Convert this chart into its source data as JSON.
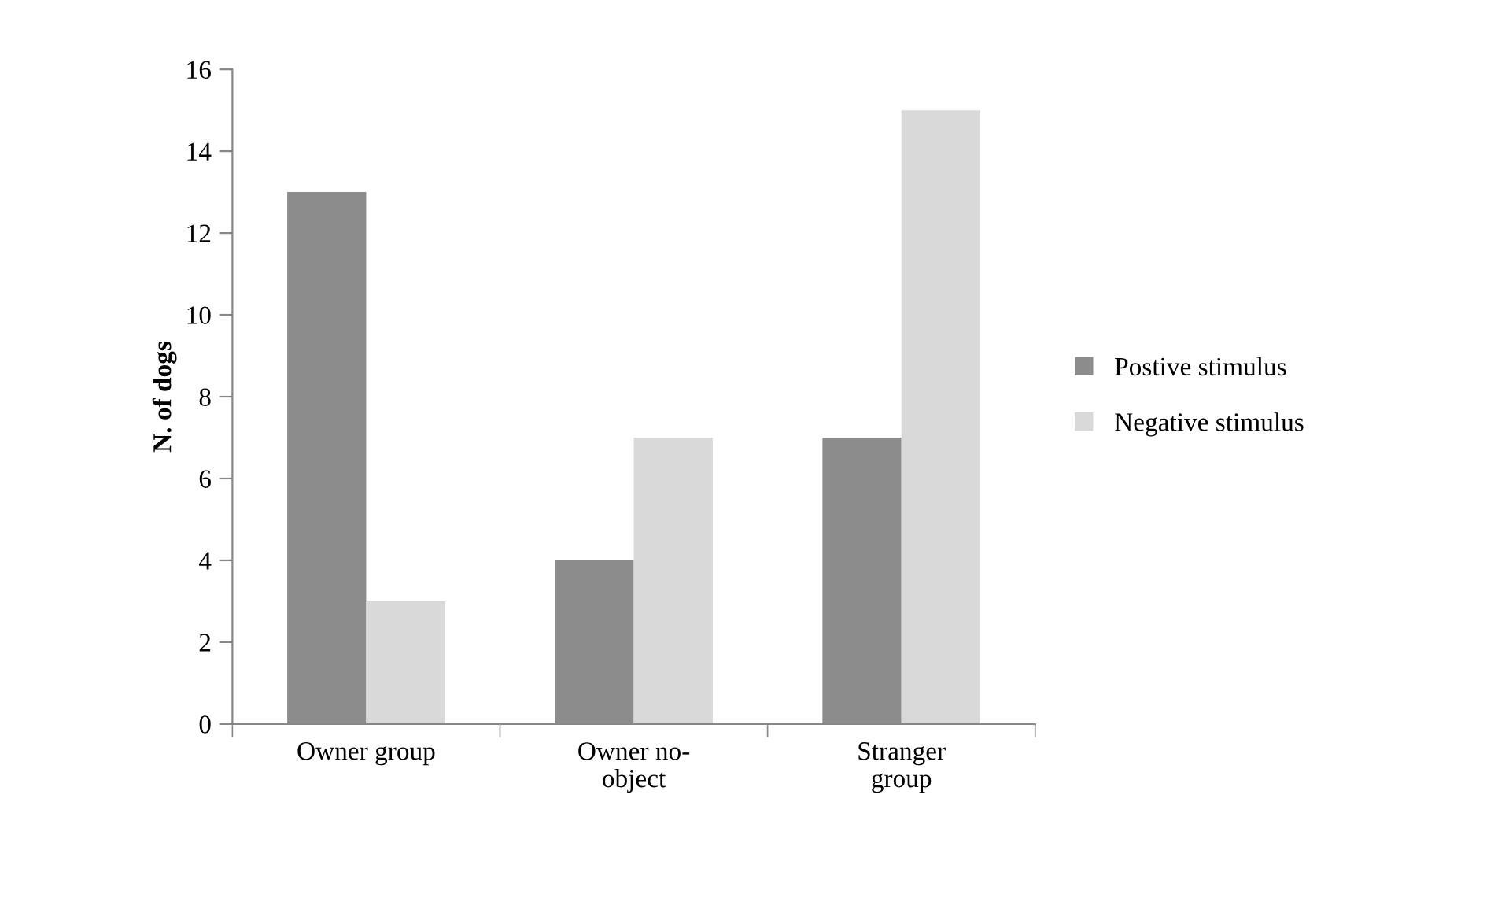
{
  "chart_data": {
    "type": "bar",
    "ylabel": "N. of dogs",
    "categories": [
      "Owner group",
      "Owner no-object",
      "Stranger group"
    ],
    "series": [
      {
        "name": "Postive stimulus",
        "color": "#8c8c8c",
        "values": [
          13,
          4,
          7
        ]
      },
      {
        "name": "Negative stimulus",
        "color": "#d9d9d9",
        "values": [
          3,
          7,
          15
        ]
      }
    ],
    "ylim": [
      0,
      16
    ],
    "yticks": [
      0,
      2,
      4,
      6,
      8,
      10,
      12,
      14,
      16
    ],
    "grid": false,
    "legend": "right"
  }
}
